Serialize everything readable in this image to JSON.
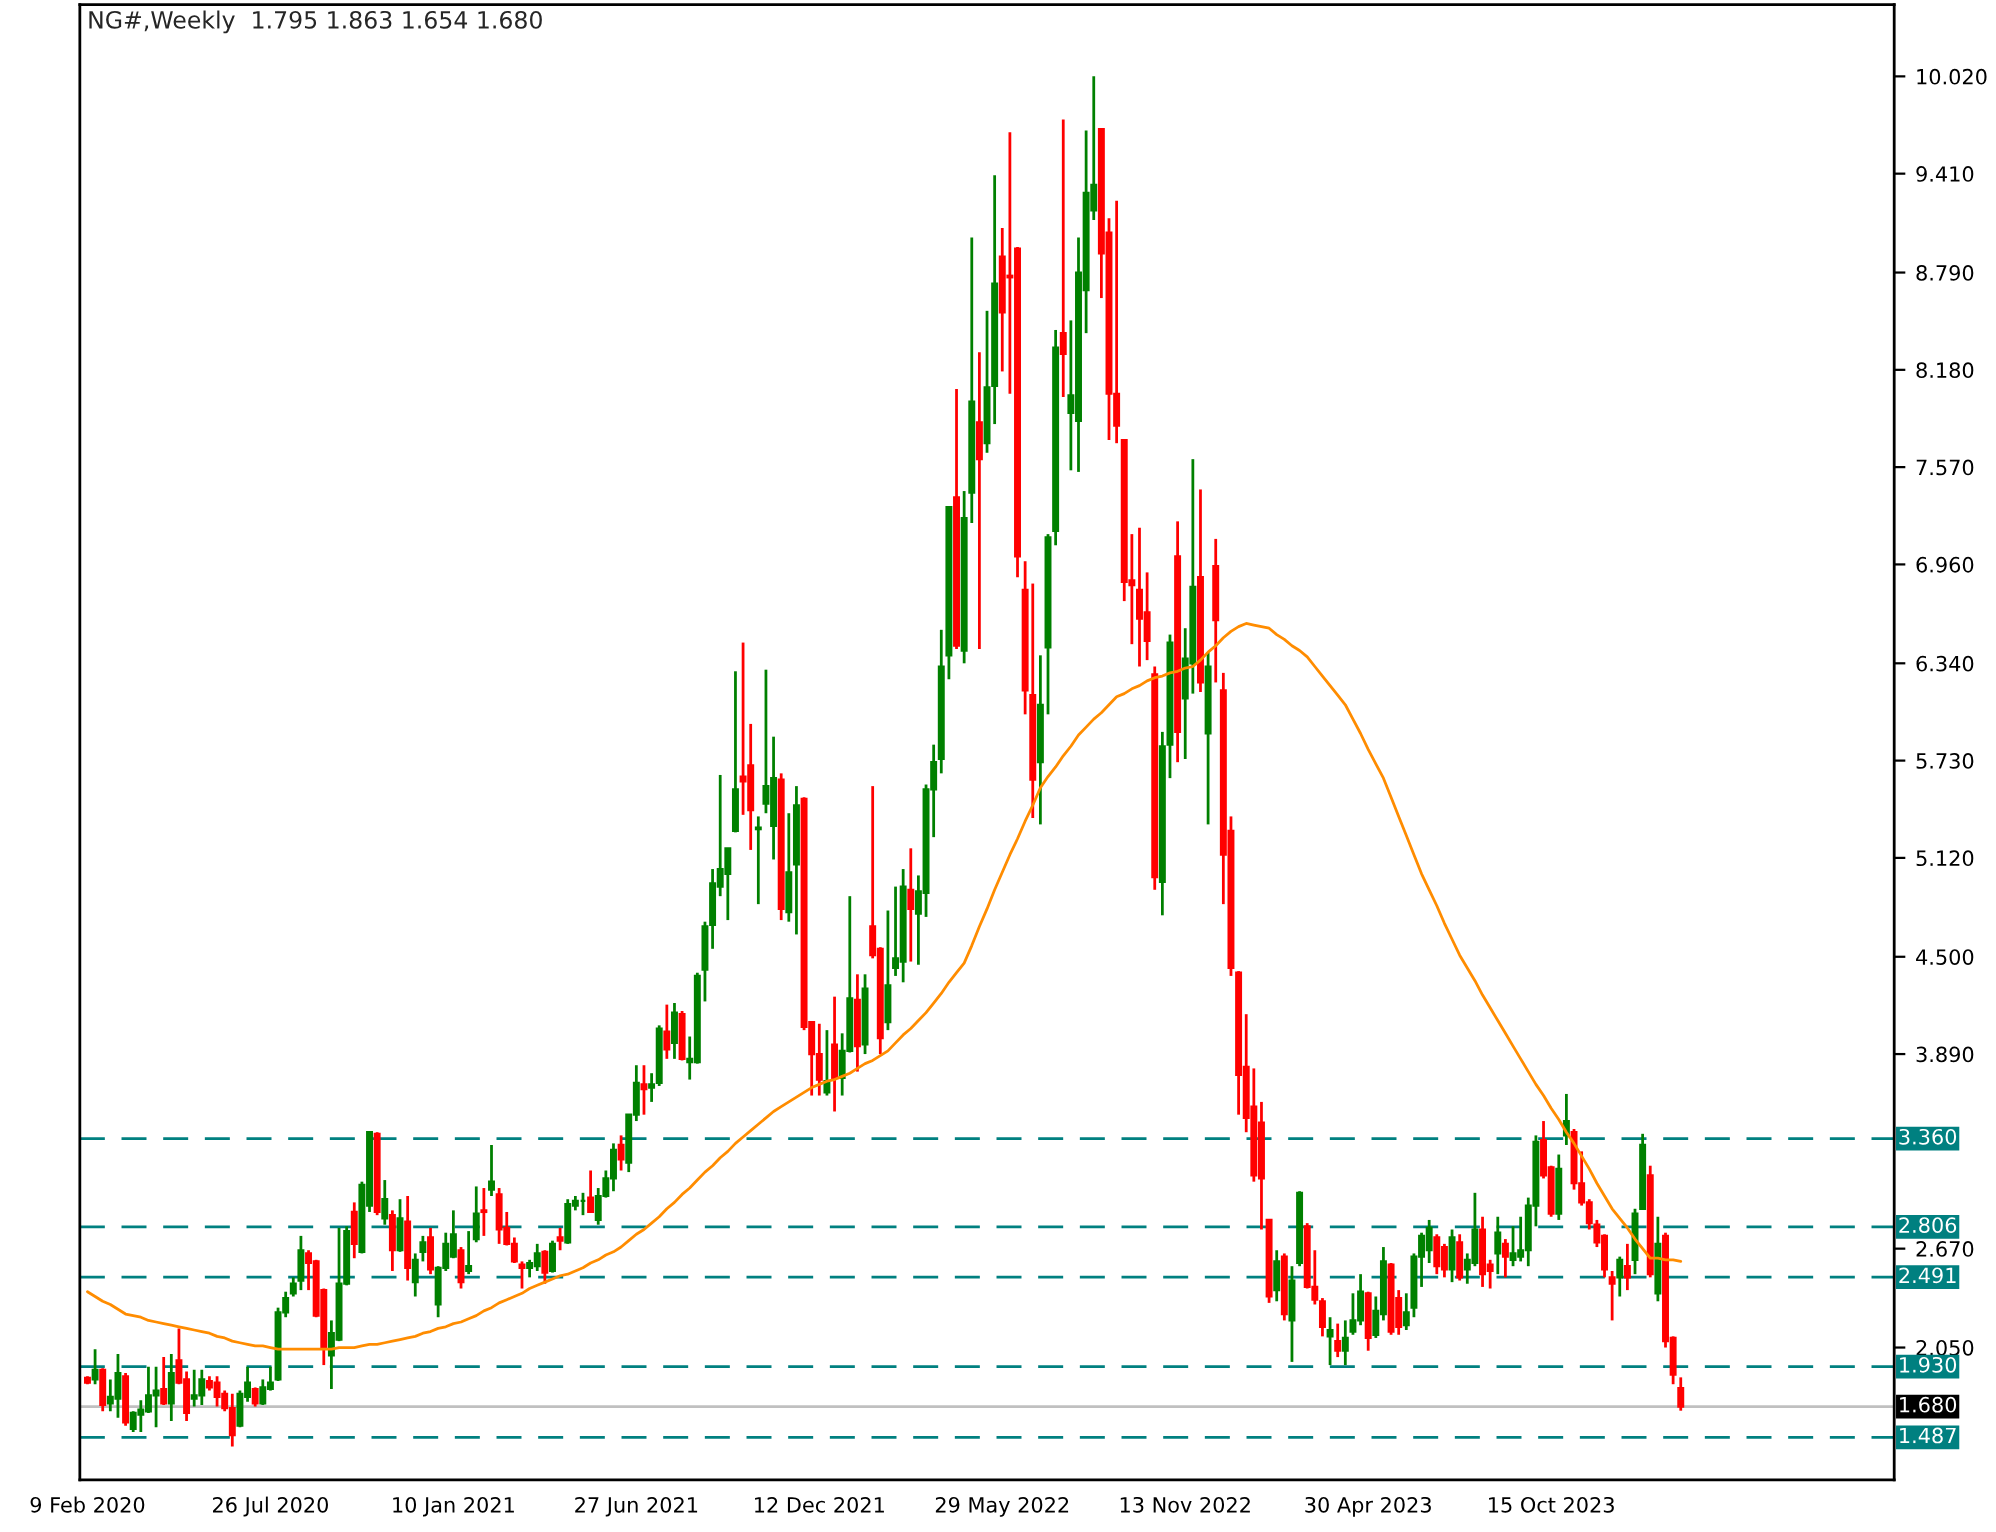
{
  "chart_data": {
    "type": "candlestick",
    "title": "NG#,Weekly  1.795 1.863 1.654 1.680",
    "categories": [
      "9 Feb 2020",
      null,
      null,
      null,
      null,
      null,
      null,
      null,
      null,
      null,
      null,
      null,
      null,
      null,
      null,
      null,
      null,
      null,
      null,
      null,
      null,
      null,
      null,
      null,
      "26 Jul 2020",
      null,
      null,
      null,
      null,
      null,
      null,
      null,
      null,
      null,
      null,
      null,
      null,
      null,
      null,
      null,
      null,
      null,
      null,
      null,
      null,
      null,
      null,
      null,
      "10 Jan 2021",
      null,
      null,
      null,
      null,
      null,
      null,
      null,
      null,
      null,
      null,
      null,
      null,
      null,
      null,
      null,
      null,
      null,
      null,
      null,
      null,
      null,
      null,
      null,
      "27 Jun 2021",
      null,
      null,
      null,
      null,
      null,
      null,
      null,
      null,
      null,
      null,
      null,
      null,
      null,
      null,
      null,
      null,
      null,
      null,
      null,
      null,
      null,
      null,
      null,
      "12 Dec 2021",
      null,
      null,
      null,
      null,
      null,
      null,
      null,
      null,
      null,
      null,
      null,
      null,
      null,
      null,
      null,
      null,
      null,
      null,
      null,
      null,
      null,
      null,
      null,
      "29 May 2022",
      null,
      null,
      null,
      null,
      null,
      null,
      null,
      null,
      null,
      null,
      null,
      null,
      null,
      null,
      null,
      null,
      null,
      null,
      null,
      null,
      null,
      null,
      null,
      "13 Nov 2022",
      null,
      null,
      null,
      null,
      null,
      null,
      null,
      null,
      null,
      null,
      null,
      null,
      null,
      null,
      null,
      null,
      null,
      null,
      null,
      null,
      null,
      null,
      null,
      "30 Apr 2023",
      null,
      null,
      null,
      null,
      null,
      null,
      null,
      null,
      null,
      null,
      null,
      null,
      null,
      null,
      null,
      null,
      null,
      null,
      null,
      null,
      null,
      null,
      null,
      "15 Oct 2023",
      null,
      null,
      null,
      null,
      null,
      null,
      null,
      null,
      null,
      null,
      null,
      null,
      null,
      null,
      null,
      null,
      null
    ],
    "colors": [
      "#ff0000",
      "#008000",
      "#ff0000",
      "#008000",
      "#008000",
      "#ff0000",
      "#008000",
      "#008000",
      "#008000",
      "#008000",
      "#ff0000",
      "#008000",
      "#ff0000",
      "#ff0000",
      "#008000",
      "#008000",
      "#ff0000",
      "#ff0000",
      "#ff0000",
      "#ff0000",
      "#008000",
      "#008000",
      "#ff0000",
      "#008000",
      "#008000",
      "#008000",
      "#008000",
      "#008000",
      "#008000",
      "#ff0000",
      "#ff0000",
      "#ff0000",
      "#008000",
      "#008000",
      "#008000",
      "#ff0000",
      "#008000",
      "#008000",
      "#ff0000",
      "#008000",
      "#ff0000",
      "#008000",
      "#ff0000",
      "#008000",
      "#008000",
      "#ff0000",
      "#008000",
      "#008000",
      "#008000",
      "#ff0000",
      "#008000",
      "#008000",
      "#ff0000",
      "#008000",
      "#ff0000",
      "#ff0000",
      "#ff0000",
      "#ff0000",
      "#008000",
      "#008000",
      "#ff0000",
      "#008000",
      "#ff0000",
      "#008000",
      "#008000",
      "#008000",
      "#ff0000",
      "#008000",
      "#008000",
      "#008000",
      "#ff0000",
      "#008000",
      "#008000",
      "#ff0000",
      "#008000",
      "#008000",
      "#ff0000",
      "#008000",
      "#ff0000",
      "#008000",
      "#008000",
      "#008000",
      "#008000",
      "#008000",
      "#008000",
      "#008000",
      "#ff0000",
      "#ff0000",
      "#008000",
      "#008000",
      "#008000",
      "#ff0000",
      "#008000",
      "#008000",
      "#ff0000",
      "#ff0000",
      "#ff0000",
      "#008000",
      "#ff0000",
      "#008000",
      "#008000",
      "#ff0000",
      "#008000",
      "#ff0000",
      "#ff0000",
      "#008000",
      "#008000",
      "#008000",
      "#ff0000",
      "#008000",
      "#008000",
      "#008000",
      "#008000",
      "#008000",
      "#ff0000",
      "#008000",
      "#008000",
      "#ff0000",
      "#008000",
      "#008000",
      "#ff0000",
      "#ff0000",
      "#ff0000",
      "#ff0000",
      "#ff0000",
      "#008000",
      "#008000",
      "#008000",
      "#ff0000",
      "#008000",
      "#008000",
      "#008000",
      "#008000",
      "#ff0000",
      "#ff0000",
      "#ff0000",
      "#ff0000",
      "#ff0000",
      "#ff0000",
      "#ff0000",
      "#ff0000",
      "#008000",
      "#008000",
      "#ff0000",
      "#008000",
      "#008000",
      "#ff0000",
      "#008000",
      "#ff0000",
      "#ff0000",
      "#ff0000",
      "#ff0000",
      "#ff0000",
      "#ff0000",
      "#ff0000",
      "#ff0000",
      "#008000",
      "#ff0000",
      "#008000",
      "#008000",
      "#ff0000",
      "#ff0000",
      "#ff0000",
      "#008000",
      "#ff0000",
      "#008000",
      "#008000",
      "#008000",
      "#ff0000",
      "#008000",
      "#008000",
      "#ff0000",
      "#ff0000",
      "#008000",
      "#008000",
      "#008000",
      "#008000",
      "#ff0000",
      "#ff0000",
      "#008000",
      "#ff0000",
      "#008000",
      "#008000",
      "#ff0000",
      "#ff0000",
      "#008000",
      "#ff0000",
      "#008000",
      "#008000",
      "#008000",
      "#008000",
      "#ff0000",
      "#ff0000",
      "#008000",
      "#008000",
      "#ff0000",
      "#ff0000",
      "#ff0000",
      "#ff0000",
      "#ff0000",
      "#ff0000",
      "#008000",
      "#ff0000",
      "#008000",
      "#008000",
      "#ff0000",
      "#008000",
      "#ff0000",
      "#ff0000",
      "#ff0000"
    ],
    "ohlc": [
      [
        1.86,
        1.87,
        1.82,
        1.83
      ],
      [
        1.85,
        2.04,
        1.82,
        1.91
      ],
      [
        1.91,
        1.92,
        1.65,
        1.69
      ],
      [
        1.7,
        1.85,
        1.65,
        1.74
      ],
      [
        1.73,
        2.01,
        1.61,
        1.89
      ],
      [
        1.87,
        1.89,
        1.56,
        1.58
      ],
      [
        1.54,
        1.65,
        1.52,
        1.64
      ],
      [
        1.63,
        1.72,
        1.52,
        1.66
      ],
      [
        1.65,
        1.93,
        1.64,
        1.75
      ],
      [
        1.75,
        1.93,
        1.55,
        1.78
      ],
      [
        1.79,
        1.99,
        1.69,
        1.7
      ],
      [
        1.7,
        2.01,
        1.59,
        1.89
      ],
      [
        1.97,
        2.17,
        1.82,
        1.83
      ],
      [
        1.85,
        1.9,
        1.59,
        1.64
      ],
      [
        1.73,
        1.91,
        1.68,
        1.75
      ],
      [
        1.75,
        1.91,
        1.69,
        1.85
      ],
      [
        1.84,
        1.87,
        1.78,
        1.8
      ],
      [
        1.83,
        1.87,
        1.68,
        1.74
      ],
      [
        1.76,
        1.78,
        1.65,
        1.67
      ],
      [
        1.67,
        1.76,
        1.43,
        1.5
      ],
      [
        1.56,
        1.78,
        1.55,
        1.76
      ],
      [
        1.74,
        1.93,
        1.71,
        1.83
      ],
      [
        1.79,
        1.8,
        1.68,
        1.7
      ],
      [
        1.7,
        1.85,
        1.69,
        1.8
      ],
      [
        1.79,
        1.93,
        1.78,
        1.83
      ],
      [
        1.85,
        2.3,
        1.84,
        2.27
      ],
      [
        2.27,
        2.4,
        2.24,
        2.36
      ],
      [
        2.39,
        2.49,
        2.37,
        2.45
      ],
      [
        2.47,
        2.75,
        2.41,
        2.66
      ],
      [
        2.64,
        2.66,
        2.41,
        2.58
      ],
      [
        2.59,
        2.6,
        2.24,
        2.25
      ],
      [
        2.41,
        2.42,
        1.94,
        2.05
      ],
      [
        2.0,
        2.22,
        1.79,
        2.14
      ],
      [
        2.1,
        2.8,
        2.09,
        2.45
      ],
      [
        2.45,
        2.81,
        2.44,
        2.78
      ],
      [
        2.9,
        2.96,
        2.61,
        2.7
      ],
      [
        2.65,
        3.09,
        2.64,
        3.07
      ],
      [
        2.94,
        3.4,
        2.9,
        3.4
      ],
      [
        3.39,
        3.4,
        2.88,
        2.9
      ],
      [
        2.86,
        3.1,
        2.82,
        2.98
      ],
      [
        2.88,
        2.91,
        2.53,
        2.66
      ],
      [
        2.66,
        2.98,
        2.65,
        2.86
      ],
      [
        2.84,
        3.0,
        2.47,
        2.55
      ],
      [
        2.46,
        2.64,
        2.37,
        2.6
      ],
      [
        2.65,
        2.75,
        2.59,
        2.71
      ],
      [
        2.74,
        2.8,
        2.51,
        2.54
      ],
      [
        2.32,
        2.56,
        2.24,
        2.55
      ],
      [
        2.55,
        2.77,
        2.53,
        2.7
      ],
      [
        2.62,
        2.91,
        2.61,
        2.76
      ],
      [
        2.66,
        2.68,
        2.42,
        2.46
      ],
      [
        2.53,
        2.78,
        2.51,
        2.56
      ],
      [
        2.73,
        3.06,
        2.71,
        2.89
      ],
      [
        2.91,
        3.05,
        2.75,
        2.9
      ],
      [
        3.04,
        3.32,
        3.0,
        3.09
      ],
      [
        3.01,
        3.05,
        2.7,
        2.79
      ],
      [
        2.8,
        2.9,
        2.69,
        2.7
      ],
      [
        2.7,
        2.74,
        2.58,
        2.59
      ],
      [
        2.57,
        2.59,
        2.42,
        2.55
      ],
      [
        2.55,
        2.6,
        2.49,
        2.58
      ],
      [
        2.56,
        2.7,
        2.53,
        2.64
      ],
      [
        2.65,
        2.66,
        2.45,
        2.52
      ],
      [
        2.53,
        2.72,
        2.52,
        2.7
      ],
      [
        2.74,
        2.8,
        2.66,
        2.72
      ],
      [
        2.71,
        2.98,
        2.7,
        2.95
      ],
      [
        2.94,
        3.0,
        2.91,
        2.97
      ],
      [
        2.97,
        3.02,
        2.88,
        2.97
      ],
      [
        2.99,
        3.16,
        2.9,
        2.9
      ],
      [
        2.85,
        3.05,
        2.82,
        3.0
      ],
      [
        3.0,
        3.16,
        2.99,
        3.11
      ],
      [
        3.11,
        3.33,
        3.03,
        3.29
      ],
      [
        3.32,
        3.38,
        3.16,
        3.23
      ],
      [
        3.21,
        3.51,
        3.15,
        3.51
      ],
      [
        3.51,
        3.82,
        3.47,
        3.71
      ],
      [
        3.7,
        3.82,
        3.51,
        3.67
      ],
      [
        3.68,
        3.77,
        3.59,
        3.7
      ],
      [
        3.71,
        4.07,
        3.69,
        4.05
      ],
      [
        4.03,
        4.2,
        3.86,
        3.92
      ],
      [
        3.96,
        4.21,
        3.86,
        4.15
      ],
      [
        4.14,
        4.16,
        3.85,
        3.86
      ],
      [
        3.84,
        4.0,
        3.73,
        3.86
      ],
      [
        3.84,
        4.4,
        3.83,
        4.38
      ],
      [
        4.42,
        4.72,
        4.22,
        4.69
      ],
      [
        4.7,
        5.05,
        4.55,
        4.96
      ],
      [
        4.94,
        5.64,
        4.88,
        5.05
      ],
      [
        5.02,
        5.18,
        4.73,
        5.18
      ],
      [
        5.29,
        6.29,
        5.28,
        5.55
      ],
      [
        5.63,
        6.47,
        5.39,
        5.6
      ],
      [
        5.7,
        5.96,
        5.17,
        5.42
      ],
      [
        5.3,
        5.38,
        4.83,
        5.31
      ],
      [
        5.46,
        6.3,
        5.4,
        5.57
      ],
      [
        5.32,
        5.88,
        5.11,
        5.62
      ],
      [
        5.61,
        5.65,
        4.73,
        4.8
      ],
      [
        4.78,
        5.4,
        4.72,
        5.03
      ],
      [
        5.08,
        5.57,
        4.64,
        5.45
      ],
      [
        5.49,
        5.5,
        4.04,
        4.06
      ],
      [
        4.09,
        4.09,
        3.63,
        3.89
      ],
      [
        3.89,
        4.08,
        3.63,
        3.73
      ],
      [
        3.65,
        4.04,
        3.63,
        3.72
      ],
      [
        3.95,
        4.25,
        3.53,
        3.74
      ],
      [
        3.74,
        4.02,
        3.63,
        3.91
      ],
      [
        3.91,
        4.88,
        3.9,
        4.24
      ],
      [
        4.23,
        4.39,
        3.78,
        3.94
      ],
      [
        3.95,
        4.39,
        3.89,
        4.3
      ],
      [
        4.69,
        5.57,
        4.49,
        4.51
      ],
      [
        4.55,
        4.56,
        3.89,
        3.99
      ],
      [
        4.09,
        4.79,
        4.04,
        4.32
      ],
      [
        4.43,
        4.94,
        4.38,
        4.49
      ],
      [
        4.47,
        5.05,
        4.34,
        4.94
      ],
      [
        4.92,
        5.18,
        4.47,
        4.8
      ],
      [
        4.77,
        5.01,
        4.45,
        4.91
      ],
      [
        4.9,
        5.58,
        4.75,
        5.55
      ],
      [
        5.55,
        5.83,
        5.25,
        5.72
      ],
      [
        5.74,
        6.55,
        5.65,
        6.32
      ],
      [
        6.39,
        7.32,
        6.24,
        7.32
      ],
      [
        7.38,
        8.06,
        6.43,
        6.45
      ],
      [
        6.42,
        7.42,
        6.34,
        7.25
      ],
      [
        7.41,
        9.01,
        7.22,
        7.98
      ],
      [
        7.85,
        8.29,
        6.43,
        7.62
      ],
      [
        7.72,
        8.55,
        7.66,
        8.07
      ],
      [
        8.08,
        9.4,
        7.84,
        8.72
      ],
      [
        8.89,
        9.07,
        8.17,
        8.54
      ],
      [
        8.77,
        9.67,
        8.03,
        8.76
      ],
      [
        8.94,
        8.95,
        6.88,
        7.01
      ],
      [
        6.8,
        6.98,
        6.02,
        6.17
      ],
      [
        6.14,
        6.84,
        5.37,
        5.61
      ],
      [
        5.72,
        6.39,
        5.33,
        6.08
      ],
      [
        6.44,
        7.15,
        6.02,
        7.13
      ],
      [
        7.17,
        8.43,
        7.08,
        8.32
      ],
      [
        8.41,
        9.75,
        8.01,
        8.28
      ],
      [
        7.91,
        8.49,
        7.55,
        8.02
      ],
      [
        7.86,
        9.01,
        7.54,
        8.79
      ],
      [
        8.68,
        9.68,
        8.41,
        9.29
      ],
      [
        9.18,
        10.02,
        9.12,
        9.34
      ],
      [
        9.69,
        9.69,
        8.63,
        8.91
      ],
      [
        9.04,
        9.13,
        7.74,
        8.03
      ],
      [
        8.03,
        9.24,
        7.72,
        7.83
      ],
      [
        7.74,
        7.74,
        6.73,
        6.85
      ],
      [
        6.86,
        7.15,
        6.46,
        6.83
      ],
      [
        6.8,
        7.19,
        6.32,
        6.62
      ],
      [
        6.66,
        6.91,
        6.36,
        6.48
      ],
      [
        6.27,
        6.32,
        4.92,
        5.0
      ],
      [
        4.97,
        5.91,
        4.76,
        5.82
      ],
      [
        5.83,
        6.52,
        5.62,
        6.47
      ],
      [
        7.01,
        7.23,
        5.72,
        5.91
      ],
      [
        6.12,
        6.56,
        5.74,
        6.37
      ],
      [
        6.34,
        7.62,
        6.15,
        6.82
      ],
      [
        6.88,
        7.43,
        6.16,
        6.22
      ],
      [
        5.9,
        6.41,
        5.33,
        6.32
      ],
      [
        6.95,
        7.12,
        6.22,
        6.61
      ],
      [
        6.17,
        6.28,
        4.83,
        5.14
      ],
      [
        5.29,
        5.38,
        4.38,
        4.43
      ],
      [
        4.4,
        4.41,
        3.51,
        3.76
      ],
      [
        3.81,
        4.14,
        3.4,
        3.49
      ],
      [
        3.56,
        3.8,
        3.09,
        3.13
      ],
      [
        3.46,
        3.59,
        2.79,
        3.11
      ],
      [
        2.85,
        2.85,
        2.33,
        2.37
      ],
      [
        2.41,
        2.66,
        2.34,
        2.59
      ],
      [
        2.62,
        2.64,
        2.22,
        2.26
      ],
      [
        2.22,
        2.56,
        1.96,
        2.47
      ],
      [
        2.58,
        3.03,
        2.56,
        3.02
      ],
      [
        2.81,
        2.83,
        2.42,
        2.43
      ],
      [
        2.43,
        2.66,
        2.32,
        2.35
      ],
      [
        2.34,
        2.36,
        2.12,
        2.18
      ],
      [
        2.12,
        2.24,
        1.94,
        2.16
      ],
      [
        2.09,
        2.2,
        1.99,
        2.03
      ],
      [
        2.03,
        2.22,
        1.94,
        2.11
      ],
      [
        2.15,
        2.39,
        2.13,
        2.22
      ],
      [
        2.22,
        2.51,
        2.19,
        2.4
      ],
      [
        2.39,
        2.4,
        2.03,
        2.11
      ],
      [
        2.13,
        2.37,
        2.11,
        2.28
      ],
      [
        2.26,
        2.68,
        2.22,
        2.59
      ],
      [
        2.57,
        2.58,
        2.13,
        2.15
      ],
      [
        2.36,
        2.41,
        2.13,
        2.18
      ],
      [
        2.19,
        2.39,
        2.16,
        2.27
      ],
      [
        2.3,
        2.64,
        2.24,
        2.62
      ],
      [
        2.62,
        2.77,
        2.43,
        2.75
      ],
      [
        2.66,
        2.85,
        2.58,
        2.8
      ],
      [
        2.74,
        2.76,
        2.51,
        2.56
      ],
      [
        2.68,
        2.7,
        2.49,
        2.54
      ],
      [
        2.54,
        2.79,
        2.46,
        2.74
      ],
      [
        2.71,
        2.76,
        2.47,
        2.49
      ],
      [
        2.54,
        2.64,
        2.45,
        2.6
      ],
      [
        2.58,
        3.02,
        2.56,
        2.79
      ],
      [
        2.79,
        2.87,
        2.43,
        2.51
      ],
      [
        2.57,
        2.6,
        2.42,
        2.53
      ],
      [
        2.64,
        2.87,
        2.51,
        2.77
      ],
      [
        2.7,
        2.73,
        2.49,
        2.62
      ],
      [
        2.6,
        2.81,
        2.56,
        2.64
      ],
      [
        2.62,
        2.87,
        2.59,
        2.66
      ],
      [
        2.66,
        2.99,
        2.56,
        2.94
      ],
      [
        2.94,
        3.38,
        2.81,
        3.34
      ],
      [
        3.35,
        3.47,
        3.11,
        3.13
      ],
      [
        3.18,
        3.19,
        2.87,
        2.89
      ],
      [
        2.89,
        3.26,
        2.85,
        3.17
      ],
      [
        3.38,
        3.64,
        3.32,
        3.47
      ],
      [
        3.4,
        3.42,
        3.04,
        3.08
      ],
      [
        3.08,
        3.28,
        2.94,
        2.96
      ],
      [
        2.96,
        2.98,
        2.79,
        2.83
      ],
      [
        2.82,
        2.85,
        2.68,
        2.71
      ],
      [
        2.75,
        2.76,
        2.49,
        2.54
      ],
      [
        2.49,
        2.53,
        2.22,
        2.45
      ],
      [
        2.49,
        2.62,
        2.37,
        2.6
      ],
      [
        2.56,
        2.7,
        2.41,
        2.49
      ],
      [
        2.6,
        2.92,
        2.51,
        2.89
      ],
      [
        2.92,
        3.39,
        2.92,
        3.32
      ],
      [
        3.13,
        3.19,
        2.49,
        2.51
      ],
      [
        2.39,
        2.87,
        2.34,
        2.7
      ],
      [
        2.75,
        2.77,
        2.05,
        2.09
      ],
      [
        2.11,
        2.12,
        1.82,
        1.88
      ],
      [
        1.795,
        1.863,
        1.654,
        1.68
      ]
    ],
    "series": [
      {
        "type": "line",
        "color": "#ff8c00",
        "values": [
          2.4,
          2.37,
          2.34,
          2.32,
          2.29,
          2.26,
          2.25,
          2.24,
          2.22,
          2.21,
          2.2,
          2.19,
          2.18,
          2.17,
          2.16,
          2.15,
          2.14,
          2.12,
          2.11,
          2.09,
          2.08,
          2.07,
          2.06,
          2.06,
          2.05,
          2.04,
          2.04,
          2.04,
          2.04,
          2.04,
          2.04,
          2.04,
          2.04,
          2.05,
          2.05,
          2.05,
          2.06,
          2.07,
          2.07,
          2.08,
          2.09,
          2.1,
          2.11,
          2.12,
          2.14,
          2.15,
          2.17,
          2.18,
          2.2,
          2.21,
          2.23,
          2.25,
          2.28,
          2.3,
          2.33,
          2.35,
          2.37,
          2.39,
          2.42,
          2.44,
          2.46,
          2.48,
          2.5,
          2.51,
          2.53,
          2.55,
          2.58,
          2.6,
          2.63,
          2.65,
          2.68,
          2.72,
          2.76,
          2.79,
          2.83,
          2.87,
          2.92,
          2.96,
          3.01,
          3.05,
          3.1,
          3.15,
          3.19,
          3.24,
          3.28,
          3.33,
          3.37,
          3.41,
          3.45,
          3.49,
          3.53,
          3.56,
          3.59,
          3.62,
          3.65,
          3.68,
          3.7,
          3.72,
          3.73,
          3.75,
          3.77,
          3.8,
          3.83,
          3.85,
          3.88,
          3.91,
          3.96,
          4.01,
          4.05,
          4.1,
          4.15,
          4.21,
          4.27,
          4.34,
          4.4,
          4.46,
          4.57,
          4.69,
          4.8,
          4.92,
          5.03,
          5.14,
          5.24,
          5.35,
          5.45,
          5.56,
          5.63,
          5.69,
          5.76,
          5.82,
          5.89,
          5.94,
          5.99,
          6.03,
          6.08,
          6.13,
          6.15,
          6.18,
          6.2,
          6.23,
          6.25,
          6.26,
          6.28,
          6.29,
          6.31,
          6.32,
          6.36,
          6.41,
          6.45,
          6.5,
          6.54,
          6.57,
          6.59,
          6.58,
          6.57,
          6.56,
          6.52,
          6.49,
          6.45,
          6.42,
          6.38,
          6.32,
          6.26,
          6.2,
          6.14,
          6.08,
          5.99,
          5.9,
          5.8,
          5.71,
          5.62,
          5.5,
          5.38,
          5.26,
          5.14,
          5.02,
          4.92,
          4.82,
          4.71,
          4.61,
          4.51,
          4.43,
          4.35,
          4.26,
          4.18,
          4.1,
          4.02,
          3.94,
          3.86,
          3.78,
          3.7,
          3.63,
          3.55,
          3.48,
          3.4,
          3.33,
          3.25,
          3.17,
          3.08,
          3.0,
          2.92,
          2.86,
          2.8,
          2.73,
          2.67,
          2.61,
          2.61,
          2.6,
          2.6,
          2.59
        ]
      }
    ],
    "ylim": [
      1.22,
      10.47
    ],
    "yticks": [
      {
        "value": 10.02,
        "label": "10.020"
      },
      {
        "value": 9.41,
        "label": "9.410"
      },
      {
        "value": 8.79,
        "label": "8.790"
      },
      {
        "value": 8.18,
        "label": "8.180"
      },
      {
        "value": 7.57,
        "label": "7.570"
      },
      {
        "value": 6.96,
        "label": "6.960"
      },
      {
        "value": 6.34,
        "label": "6.340"
      },
      {
        "value": 5.73,
        "label": "5.730"
      },
      {
        "value": 5.12,
        "label": "5.120"
      },
      {
        "value": 4.5,
        "label": "4.500"
      },
      {
        "value": 3.89,
        "label": "3.890"
      },
      {
        "value": 2.67,
        "label": "2.670"
      },
      {
        "value": 2.05,
        "label": "2.050"
      }
    ],
    "ref_lines": [
      {
        "axis": "y",
        "value": 3.36,
        "label": "3.360",
        "color": "#008080",
        "line_style": "dashed"
      },
      {
        "axis": "y",
        "value": 2.806,
        "label": "2.806",
        "color": "#008080",
        "line_style": "dashed"
      },
      {
        "axis": "y",
        "value": 2.491,
        "label": "2.491",
        "color": "#008080",
        "line_style": "dashed"
      },
      {
        "axis": "y",
        "value": 1.93,
        "label": "1.930",
        "color": "#008080",
        "line_style": "dashed"
      },
      {
        "axis": "y",
        "value": 1.68,
        "label": "1.680",
        "color": "#c0c0c0",
        "line_style": "solid"
      },
      {
        "axis": "y",
        "value": 1.487,
        "label": "1.487",
        "color": "#008080",
        "line_style": "dashed"
      }
    ],
    "grid": false,
    "legend": false
  }
}
